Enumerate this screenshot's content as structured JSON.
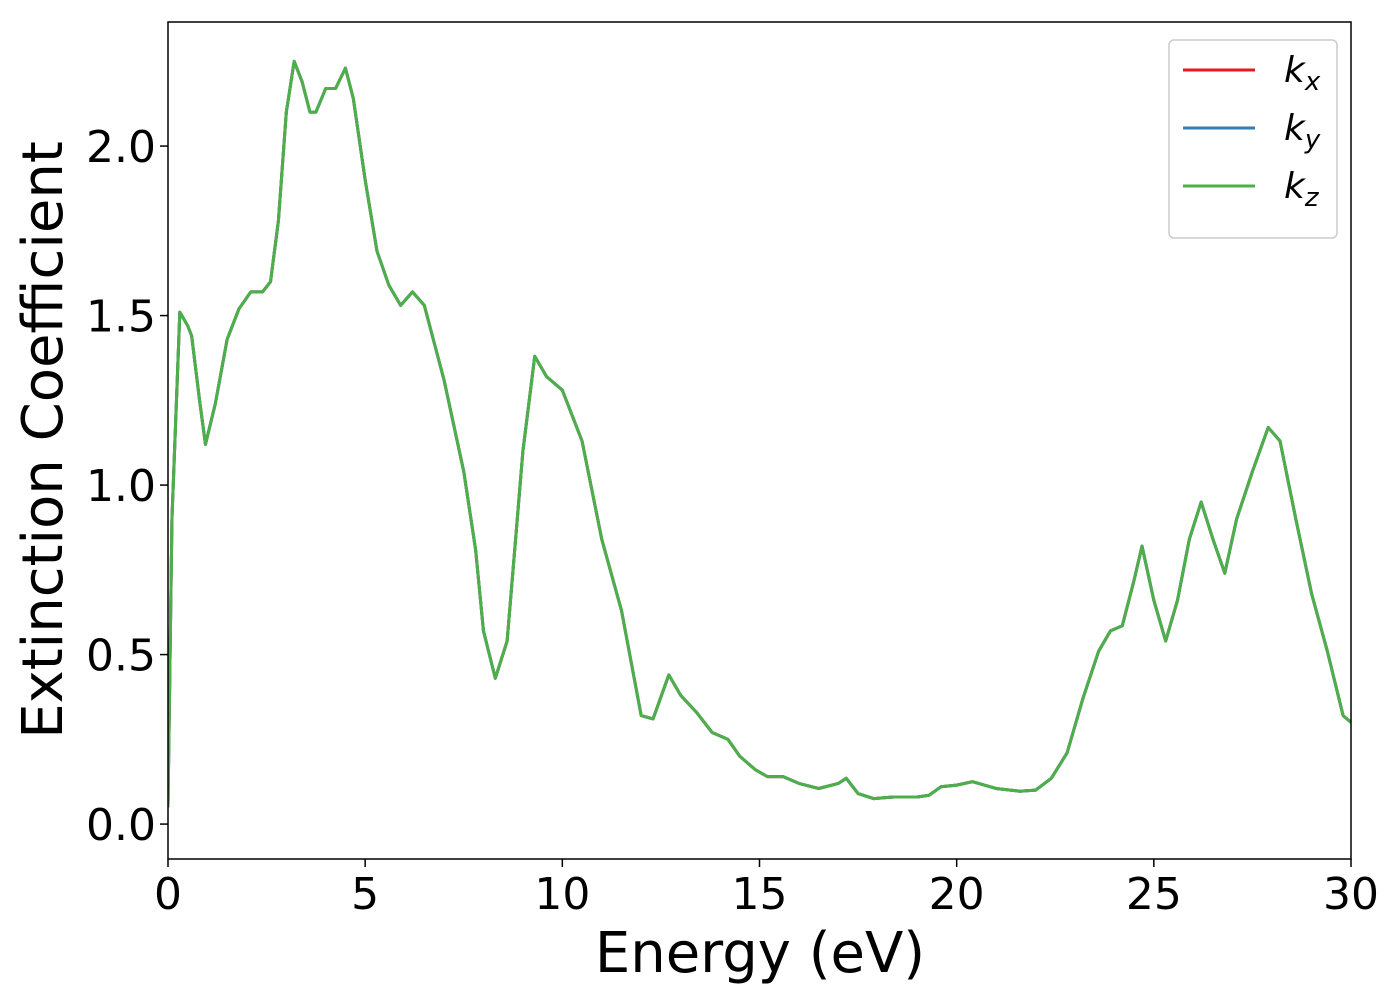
{
  "chart_data": {
    "type": "line",
    "xlabel": "Energy (eV)",
    "ylabel": "Extinction Coefficient",
    "xlim": [
      0,
      30
    ],
    "ylim": [
      -0.103,
      2.366
    ],
    "xticks": [
      0,
      5,
      10,
      15,
      20,
      25,
      30
    ],
    "yticks": [
      {
        "value": 0,
        "label": "0.0"
      },
      0.5,
      {
        "value": 1,
        "label": "1.0"
      },
      1.5,
      {
        "value": 2,
        "label": "2.0"
      }
    ],
    "legend": "upper right",
    "x": [
      0,
      0.1,
      0.3,
      0.5,
      0.6,
      0.8,
      0.95,
      1.2,
      1.5,
      1.8,
      2.1,
      2.4,
      2.6,
      2.8,
      3.0,
      3.2,
      3.4,
      3.6,
      3.75,
      4.0,
      4.25,
      4.5,
      4.7,
      5.0,
      5.3,
      5.6,
      5.9,
      6.2,
      6.5,
      7.0,
      7.5,
      7.8,
      8.0,
      8.3,
      8.6,
      9.0,
      9.3,
      9.6,
      10.0,
      10.5,
      11.0,
      11.5,
      12.0,
      12.3,
      12.7,
      13.0,
      13.4,
      13.8,
      14.2,
      14.5,
      14.9,
      15.2,
      15.6,
      16.0,
      16.5,
      17.0,
      17.2,
      17.5,
      17.9,
      18.4,
      19.0,
      19.3,
      19.6,
      20.0,
      20.4,
      21.0,
      21.6,
      22.0,
      22.4,
      22.8,
      23.2,
      23.6,
      23.9,
      24.2,
      24.5,
      24.7,
      25.0,
      25.3,
      25.6,
      25.9,
      26.2,
      26.5,
      26.8,
      27.1,
      27.5,
      27.9,
      28.2,
      28.6,
      29.0,
      29.4,
      29.8,
      30.0
    ],
    "series": [
      {
        "name": "kx",
        "color": "#e41a1c",
        "values": [
          0.05,
          0.9,
          1.51,
          1.47,
          1.44,
          1.25,
          1.12,
          1.24,
          1.43,
          1.52,
          1.57,
          1.57,
          1.6,
          1.78,
          2.1,
          2.25,
          2.19,
          2.1,
          2.1,
          2.17,
          2.17,
          2.23,
          2.14,
          1.9,
          1.69,
          1.59,
          1.53,
          1.57,
          1.53,
          1.31,
          1.04,
          0.81,
          0.57,
          0.43,
          0.54,
          1.1,
          1.38,
          1.32,
          1.28,
          1.13,
          0.84,
          0.63,
          0.32,
          0.31,
          0.44,
          0.38,
          0.33,
          0.27,
          0.25,
          0.2,
          0.16,
          0.14,
          0.14,
          0.12,
          0.105,
          0.12,
          0.135,
          0.09,
          0.075,
          0.08,
          0.08,
          0.085,
          0.11,
          0.115,
          0.125,
          0.105,
          0.097,
          0.1,
          0.135,
          0.21,
          0.37,
          0.51,
          0.57,
          0.585,
          0.72,
          0.82,
          0.66,
          0.54,
          0.66,
          0.84,
          0.95,
          0.84,
          0.74,
          0.9,
          1.04,
          1.17,
          1.13,
          0.9,
          0.68,
          0.51,
          0.32,
          0.3
        ]
      },
      {
        "name": "ky",
        "color": "#377eb8",
        "values": [
          0.05,
          0.9,
          1.51,
          1.47,
          1.44,
          1.25,
          1.12,
          1.24,
          1.43,
          1.52,
          1.57,
          1.57,
          1.6,
          1.78,
          2.1,
          2.25,
          2.19,
          2.1,
          2.1,
          2.17,
          2.17,
          2.23,
          2.14,
          1.9,
          1.69,
          1.59,
          1.53,
          1.57,
          1.53,
          1.31,
          1.04,
          0.81,
          0.57,
          0.43,
          0.54,
          1.1,
          1.38,
          1.32,
          1.28,
          1.13,
          0.84,
          0.63,
          0.32,
          0.31,
          0.44,
          0.38,
          0.33,
          0.27,
          0.25,
          0.2,
          0.16,
          0.14,
          0.14,
          0.12,
          0.105,
          0.12,
          0.135,
          0.09,
          0.075,
          0.08,
          0.08,
          0.085,
          0.11,
          0.115,
          0.125,
          0.105,
          0.097,
          0.1,
          0.135,
          0.21,
          0.37,
          0.51,
          0.57,
          0.585,
          0.72,
          0.82,
          0.66,
          0.54,
          0.66,
          0.84,
          0.95,
          0.84,
          0.74,
          0.9,
          1.04,
          1.17,
          1.13,
          0.9,
          0.68,
          0.51,
          0.32,
          0.3
        ]
      },
      {
        "name": "kz",
        "color": "#4daf4a",
        "values": [
          0.05,
          0.9,
          1.51,
          1.47,
          1.44,
          1.25,
          1.12,
          1.24,
          1.43,
          1.52,
          1.57,
          1.57,
          1.6,
          1.78,
          2.1,
          2.25,
          2.19,
          2.1,
          2.1,
          2.17,
          2.17,
          2.23,
          2.14,
          1.9,
          1.69,
          1.59,
          1.53,
          1.57,
          1.53,
          1.31,
          1.04,
          0.81,
          0.57,
          0.43,
          0.54,
          1.1,
          1.38,
          1.32,
          1.28,
          1.13,
          0.84,
          0.63,
          0.32,
          0.31,
          0.44,
          0.38,
          0.33,
          0.27,
          0.25,
          0.2,
          0.16,
          0.14,
          0.14,
          0.12,
          0.105,
          0.12,
          0.135,
          0.09,
          0.075,
          0.08,
          0.08,
          0.085,
          0.11,
          0.115,
          0.125,
          0.105,
          0.097,
          0.1,
          0.135,
          0.21,
          0.37,
          0.51,
          0.57,
          0.585,
          0.72,
          0.82,
          0.66,
          0.54,
          0.66,
          0.84,
          0.95,
          0.84,
          0.74,
          0.9,
          1.04,
          1.17,
          1.13,
          0.9,
          0.68,
          0.51,
          0.32,
          0.3
        ]
      }
    ]
  }
}
